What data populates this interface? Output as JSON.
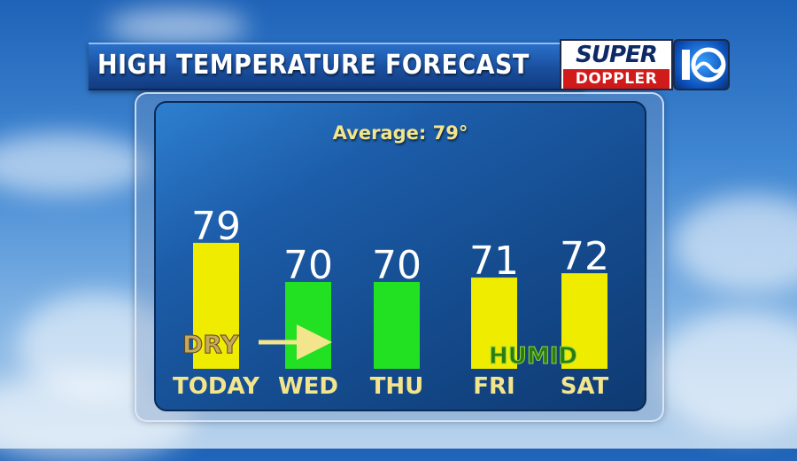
{
  "title": "HIGH TEMPERATURE FORECAST",
  "logo": {
    "line1": "SUPER",
    "line2": "DOPPLER",
    "number": "10"
  },
  "average_label": "Average: 79°",
  "annotations": {
    "dry": "DRY",
    "humid": "HUMID"
  },
  "colors": {
    "warm_bar": "#f0ec00",
    "cool_bar": "#22e022",
    "day_label": "#f3e58c"
  },
  "chart_data": {
    "type": "bar",
    "categories": [
      "TODAY",
      "WED",
      "THU",
      "FRI",
      "SAT"
    ],
    "values": [
      79,
      70,
      70,
      71,
      72
    ],
    "bar_colors": [
      "#f0ec00",
      "#22e022",
      "#22e022",
      "#f0ec00",
      "#f0ec00"
    ],
    "title": "HIGH TEMPERATURE FORECAST",
    "xlabel": "",
    "ylabel": "",
    "grid": false
  }
}
